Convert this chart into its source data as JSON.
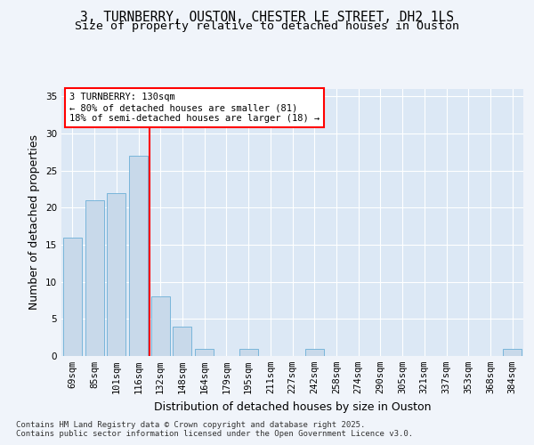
{
  "title_line1": "3, TURNBERRY, OUSTON, CHESTER LE STREET, DH2 1LS",
  "title_line2": "Size of property relative to detached houses in Ouston",
  "xlabel": "Distribution of detached houses by size in Ouston",
  "ylabel": "Number of detached properties",
  "categories": [
    "69sqm",
    "85sqm",
    "101sqm",
    "116sqm",
    "132sqm",
    "148sqm",
    "164sqm",
    "179sqm",
    "195sqm",
    "211sqm",
    "227sqm",
    "242sqm",
    "258sqm",
    "274sqm",
    "290sqm",
    "305sqm",
    "321sqm",
    "337sqm",
    "353sqm",
    "368sqm",
    "384sqm"
  ],
  "values": [
    16,
    21,
    22,
    27,
    8,
    4,
    1,
    0,
    1,
    0,
    0,
    1,
    0,
    0,
    0,
    0,
    0,
    0,
    0,
    0,
    1
  ],
  "bar_color": "#c8d9ea",
  "bar_edge_color": "#6baed6",
  "plot_background_color": "#dce8f5",
  "fig_background_color": "#f0f4fa",
  "grid_color": "#ffffff",
  "vline_x": 3.5,
  "vline_color": "red",
  "annotation_text": "3 TURNBERRY: 130sqm\n← 80% of detached houses are smaller (81)\n18% of semi-detached houses are larger (18) →",
  "annotation_box_color": "white",
  "annotation_box_edge_color": "red",
  "ylim": [
    0,
    36
  ],
  "yticks": [
    0,
    5,
    10,
    15,
    20,
    25,
    30,
    35
  ],
  "footer_text": "Contains HM Land Registry data © Crown copyright and database right 2025.\nContains public sector information licensed under the Open Government Licence v3.0.",
  "title_fontsize": 10.5,
  "subtitle_fontsize": 9.5,
  "axis_label_fontsize": 9,
  "tick_fontsize": 7.5,
  "annotation_fontsize": 7.5,
  "footer_fontsize": 6.5
}
